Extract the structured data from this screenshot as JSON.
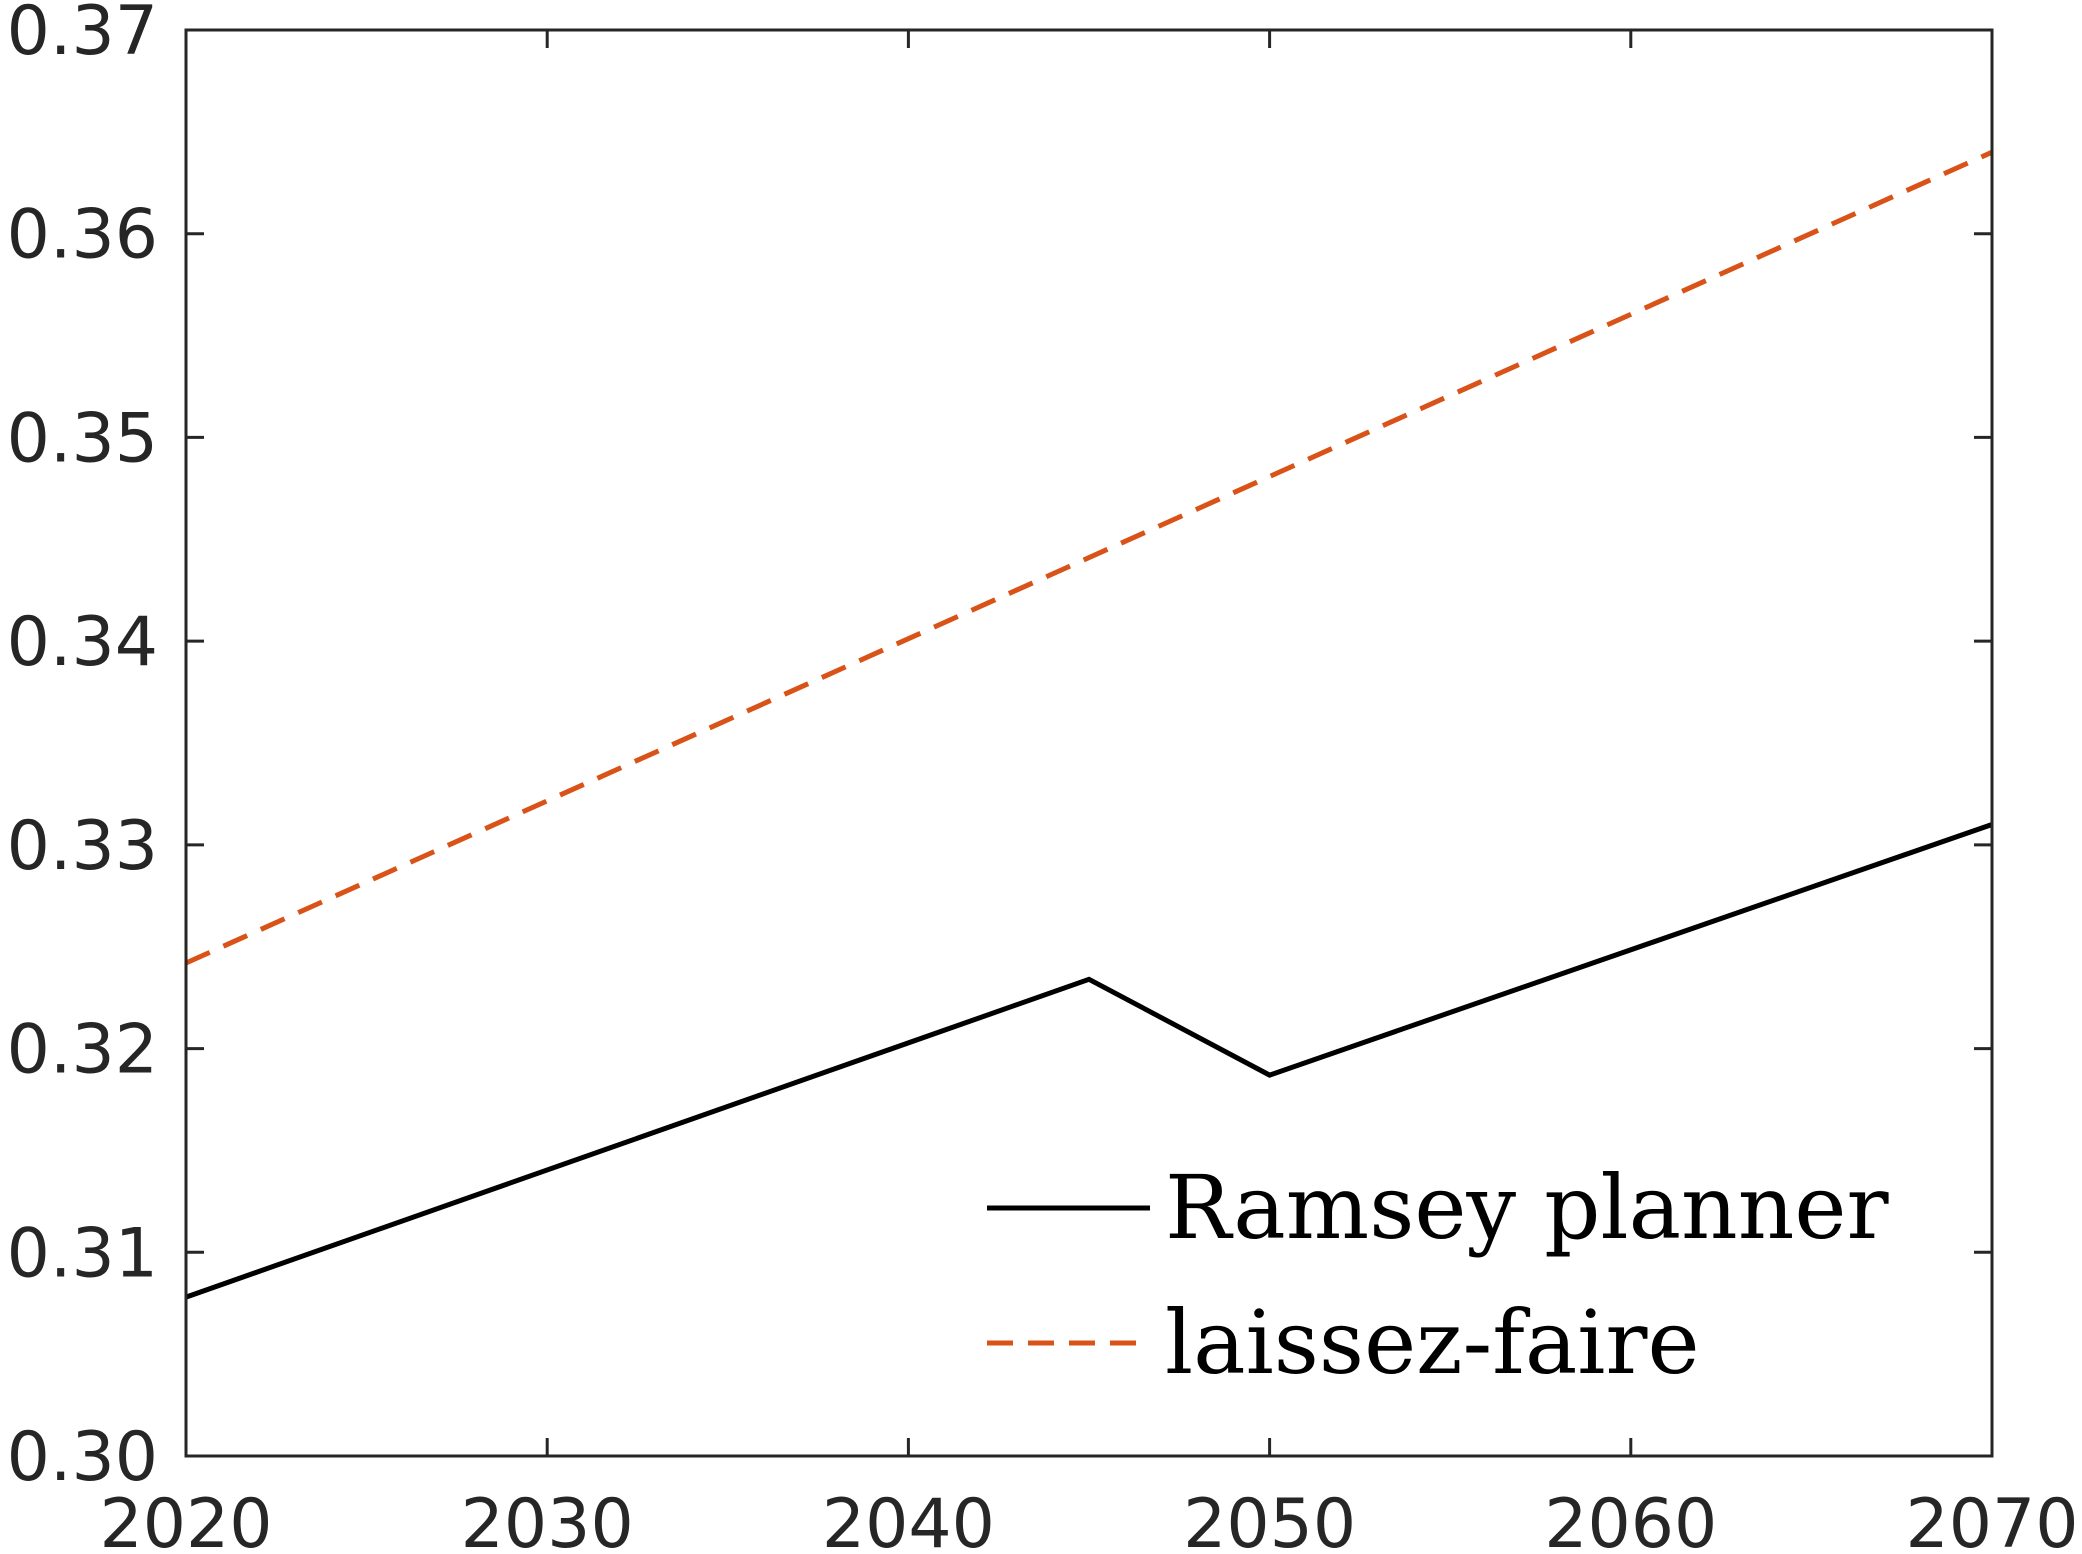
{
  "chart_data": {
    "type": "line",
    "title": "",
    "xlabel": "",
    "ylabel": "",
    "xlim": [
      2020,
      2070
    ],
    "ylim": [
      0.3,
      0.37
    ],
    "xticks": [
      2020,
      2030,
      2040,
      2050,
      2060,
      2070
    ],
    "xtick_labels": [
      "2020",
      "2030",
      "2040",
      "2050",
      "2060",
      "2070"
    ],
    "yticks": [
      0.3,
      0.31,
      0.32,
      0.33,
      0.34,
      0.35,
      0.36,
      0.37
    ],
    "ytick_labels": [
      "0.30",
      "0.31",
      "0.32",
      "0.33",
      "0.34",
      "0.35",
      "0.36",
      "0.37"
    ],
    "grid": false,
    "legend_position": "bottom-right",
    "series": [
      {
        "name": "Ramsey planner",
        "color": "#000000",
        "style": "solid",
        "x": [
          2020,
          2045,
          2050,
          2070
        ],
        "y": [
          0.3078,
          0.3234,
          0.3187,
          0.331
        ]
      },
      {
        "name": "laissez-faire",
        "color": "#D95319",
        "style": "dashed",
        "x": [
          2020,
          2070
        ],
        "y": [
          0.3242,
          0.364
        ]
      }
    ]
  }
}
